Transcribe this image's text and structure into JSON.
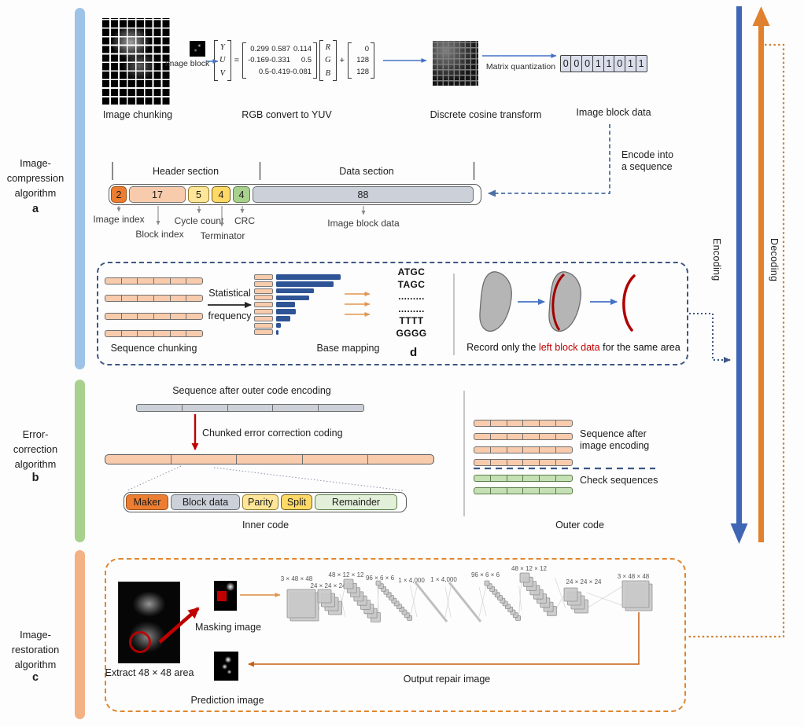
{
  "palette": {
    "encoding_blue": "#3f66b5",
    "decoding_orange": "#e0812f",
    "sidebar_blue": "#9dc3e6",
    "sidebar_green": "#a9d18e",
    "sidebar_orange": "#f4b183",
    "peach": "#f8cbad",
    "accent_red": "#c00000",
    "navy_dash": "#3d5684",
    "histogram_blue": "#2e5496"
  },
  "sidebar": {
    "a": {
      "label": "Image-\ncompression\nalgorithm",
      "letter": "a"
    },
    "b": {
      "label": "Error-\ncorrection\nalgorithm",
      "letter": "b"
    },
    "c": {
      "label": "Image-\nrestoration\nalgorithm",
      "letter": "c"
    }
  },
  "encoding_label": "Encoding",
  "decoding_label": "Decoding",
  "section_a": {
    "image_chunking_label": "Image chunking",
    "image_block_label": "Image block",
    "equation": {
      "out": [
        "Y",
        "U",
        "V"
      ],
      "equals": "=",
      "matrix": [
        [
          "0.299",
          "0.587",
          "0.114"
        ],
        [
          "-0.169",
          "-0.331",
          "0.5"
        ],
        [
          "0.5",
          "-0.419",
          "-0.081"
        ]
      ],
      "rgb": [
        "R",
        "G",
        "B"
      ],
      "plus": "+",
      "offset": [
        "0",
        "128",
        "128"
      ]
    },
    "rgb_to_yuv_label": "RGB convert to YUV",
    "dct_label": "Discrete cosine transform",
    "matrix_quantization_label": "Matrix quantization",
    "bits": [
      "0",
      "0",
      "0",
      "1",
      "1",
      "0",
      "1",
      "1"
    ],
    "image_block_data_label": "Image block data",
    "encode_note": "Encode into\na sequence",
    "sequence": {
      "header_label": "Header section",
      "data_label": "Data section",
      "blocks": [
        {
          "value": "2",
          "label": "Image index"
        },
        {
          "value": "17",
          "label": "Block index"
        },
        {
          "value": "5",
          "label": "Cycle count"
        },
        {
          "value": "4",
          "label": "Terminator"
        },
        {
          "value": "4",
          "label": "CRC"
        },
        {
          "value": "88",
          "label": "Image block data"
        }
      ]
    }
  },
  "box_d": {
    "panel_letter": "d",
    "sequence_chunking_label": "Sequence chunking",
    "stat_top": "Statistical",
    "stat_bottom": "frequency",
    "base_mapping_label": "Base mapping",
    "bases": "ATGC\nTAGC\n.........\n.........\nTTTT\nGGGG",
    "histogram_values": [
      82,
      73,
      48,
      42,
      24,
      25,
      18,
      6,
      3
    ],
    "same_area_label": "Same\narea",
    "record_pre": "Record only the ",
    "record_red": "left block data",
    "record_post": " for the same area"
  },
  "section_b": {
    "outer_encoded_label": "Sequence after outer code encoding",
    "chunked_label": "Chunked error correction coding",
    "inner_blocks": [
      {
        "label": "Maker"
      },
      {
        "label": "Block data"
      },
      {
        "label": "Parity"
      },
      {
        "label": "Split"
      },
      {
        "label": "Remainder"
      }
    ],
    "inner_code_label": "Inner code",
    "seq_after_image_label": "Sequence after\nimage encoding",
    "check_sequences_label": "Check sequences",
    "outer_code_label": "Outer code"
  },
  "section_c": {
    "extract_label": "Extract 48 × 48 area",
    "masking_label": "Masking image",
    "prediction_label": "Prediction image",
    "output_repair_label": "Output repair image",
    "cnn_labels": [
      "3 × 48 × 48",
      "24 × 24 × 24",
      "48 × 12 × 12",
      "96 × 6 × 6",
      "1 × 4,000",
      "1 × 4,000",
      "96 × 6 × 6",
      "48 × 12 × 12",
      "24 × 24 × 24",
      "3 × 48 × 48"
    ]
  }
}
